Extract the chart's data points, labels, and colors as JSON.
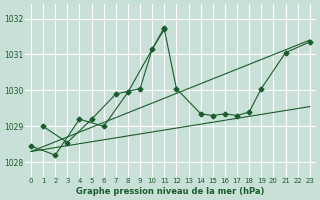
{
  "bg_color": "#c8e0d8",
  "grid_color": "#ffffff",
  "line_color": "#1a5c2a",
  "xlabel": "Graphe pression niveau de la mer (hPa)",
  "xlabel_color": "#1a5c2a",
  "ylim": [
    1027.6,
    1032.4
  ],
  "xlim": [
    -0.5,
    23.5
  ],
  "yticks": [
    1028,
    1029,
    1030,
    1031,
    1032
  ],
  "xticks": [
    0,
    1,
    2,
    3,
    4,
    5,
    6,
    7,
    8,
    9,
    10,
    11,
    12,
    13,
    14,
    15,
    16,
    17,
    18,
    19,
    20,
    21,
    22,
    23
  ],
  "series": {
    "line1": [
      null,
      1029.0,
      null,
      1028.55,
      null,
      1029.2,
      null,
      1029.9,
      null,
      1030.05,
      1031.15,
      1031.7,
      1030.05,
      null,
      1029.35,
      1029.3,
      1029.35,
      1029.3,
      1029.4,
      1030.05,
      null,
      1031.05,
      null,
      1031.35
    ],
    "line2": [
      1028.45,
      null,
      1028.2,
      null,
      1029.2,
      null,
      1029.0,
      null,
      1029.95,
      null,
      null,
      1031.75,
      null,
      null,
      null,
      null,
      null,
      null,
      null,
      null,
      null,
      null,
      null,
      null
    ],
    "trend1": [
      1028.3,
      null,
      null,
      null,
      null,
      null,
      null,
      null,
      null,
      null,
      null,
      null,
      null,
      null,
      null,
      null,
      null,
      null,
      null,
      null,
      null,
      null,
      null,
      1031.4
    ],
    "trend2": [
      1028.3,
      null,
      null,
      null,
      null,
      null,
      null,
      null,
      null,
      null,
      null,
      null,
      null,
      null,
      null,
      null,
      null,
      null,
      null,
      null,
      null,
      null,
      null,
      1029.55
    ]
  }
}
